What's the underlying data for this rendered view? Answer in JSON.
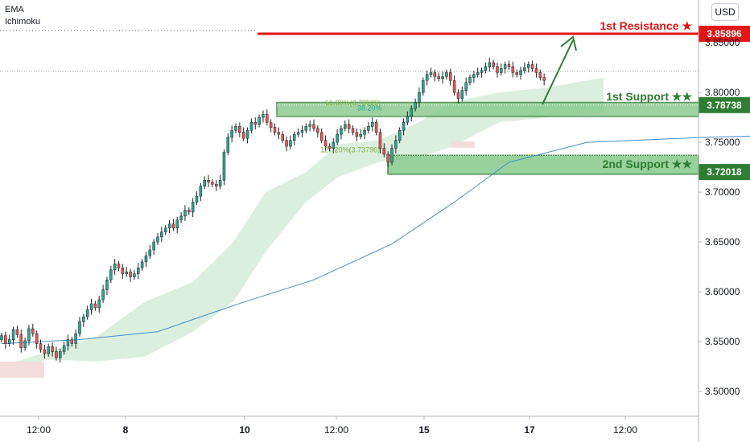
{
  "indicators": [
    "EMA",
    "Ichimoku"
  ],
  "currency": "USD",
  "colors": {
    "up": "#26a69a",
    "down": "#ef5350",
    "candle": "#000000",
    "resistance": "#e31515",
    "support": "#2e7d32",
    "support_zone": "#86c98a",
    "cloud": "#cfe9d3",
    "cloud_red": "#f3dcdc",
    "ema": "#3f8fcf",
    "arrow": "#2e7d32"
  },
  "chart_data": {
    "type": "candlestick",
    "y_ticks": [
      "3.50000",
      "3.55000",
      "3.60000",
      "3.65000",
      "3.70000",
      "3.75000",
      "3.80000",
      "3.85000"
    ],
    "x_ticks": [
      "12:00",
      "8",
      "12:00",
      "10",
      "12:00",
      "15",
      "12:00",
      "17",
      "12:00"
    ],
    "ylim": [
      3.47,
      3.885
    ],
    "levels": [
      {
        "name": "1st Resistance ★",
        "value": "3.85896",
        "kind": "resistance"
      },
      {
        "name": "1st Support ★★",
        "value": "3.78738",
        "kind": "support"
      },
      {
        "name": "2nd Support ★★",
        "value": "3.72018",
        "kind": "support"
      }
    ],
    "fib_labels": [
      {
        "text": "61.80%(3.78926)",
        "price": 3.7895
      },
      {
        "text": "38.20%",
        "price": 3.7845
      },
      {
        "text": "127.20%(3.73796)",
        "price": 3.7426
      }
    ],
    "current_price_line": 3.8215,
    "candles_close": [
      3.556,
      3.548,
      3.552,
      3.562,
      3.557,
      3.544,
      3.551,
      3.563,
      3.558,
      3.548,
      3.542,
      3.538,
      3.545,
      3.54,
      3.534,
      3.54,
      3.546,
      3.552,
      3.548,
      3.558,
      3.57,
      3.575,
      3.582,
      3.588,
      3.584,
      3.592,
      3.602,
      3.612,
      3.622,
      3.628,
      3.624,
      3.618,
      3.62,
      3.615,
      3.618,
      3.624,
      3.63,
      3.636,
      3.642,
      3.65,
      3.655,
      3.66,
      3.664,
      3.668,
      3.664,
      3.672,
      3.676,
      3.682,
      3.68,
      3.69,
      3.696,
      3.706,
      3.712,
      3.71,
      3.708,
      3.706,
      3.712,
      3.74,
      3.755,
      3.762,
      3.766,
      3.76,
      3.754,
      3.762,
      3.77,
      3.768,
      3.775,
      3.778,
      3.77,
      3.765,
      3.76,
      3.758,
      3.752,
      3.746,
      3.752,
      3.758,
      3.76,
      3.762,
      3.766,
      3.768,
      3.764,
      3.76,
      3.752,
      3.746,
      3.744,
      3.75,
      3.758,
      3.764,
      3.768,
      3.764,
      3.76,
      3.756,
      3.758,
      3.762,
      3.766,
      3.77,
      3.76,
      3.744,
      3.738,
      3.73,
      3.744,
      3.752,
      3.762,
      3.77,
      3.776,
      3.784,
      3.79,
      3.8,
      3.812,
      3.818,
      3.82,
      3.816,
      3.814,
      3.816,
      3.82,
      3.812,
      3.8,
      3.794,
      3.802,
      3.81,
      3.815,
      3.818,
      3.82,
      3.822,
      3.826,
      3.83,
      3.826,
      3.82,
      3.824,
      3.828,
      3.826,
      3.82,
      3.818,
      3.822,
      3.825,
      3.828,
      3.824,
      3.82,
      3.815,
      3.812
    ],
    "ema_points": [
      [
        0,
        3.548
      ],
      [
        20,
        3.552
      ],
      [
        40,
        3.56
      ],
      [
        60,
        3.587
      ],
      [
        80,
        3.612
      ],
      [
        100,
        3.648
      ],
      [
        116,
        3.69
      ],
      [
        130,
        3.73
      ],
      [
        150,
        3.75
      ],
      [
        180,
        3.755
      ],
      [
        200,
        3.757
      ],
      [
        230,
        3.76
      ],
      [
        260,
        3.77
      ],
      [
        290,
        3.8
      ],
      [
        320,
        3.812
      ],
      [
        344,
        3.817
      ]
    ]
  }
}
